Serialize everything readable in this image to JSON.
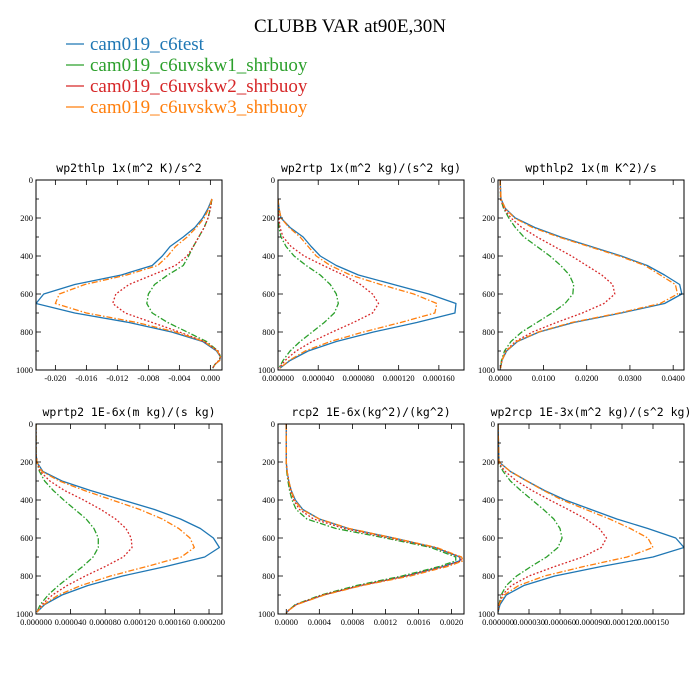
{
  "title": "CLUBB VAR at90E,30N",
  "legend": [
    {
      "name": "cam019_c6test",
      "color": "#1f77b4",
      "dash": "solid"
    },
    {
      "name": "cam019_c6uvskw1_shrbuoy",
      "color": "#2ca02c",
      "dash": "dashdot"
    },
    {
      "name": "cam019_c6uvskw2_shrbuoy",
      "color": "#d62728",
      "dash": "dot"
    },
    {
      "name": "cam019_c6uvskw3_shrbuoy",
      "color": "#ff7f0e",
      "dash": "dashdot"
    }
  ],
  "chart_data": [
    {
      "type": "line",
      "title": "wp2thlp  1x(m^2 K)/s^2",
      "xlim": [
        -0.0225,
        0.0015
      ],
      "ylim": [
        1000,
        0
      ],
      "xtick_labels": [
        "-0.020",
        "-0.016",
        "-0.012",
        "-0.008",
        "-0.004",
        "0.000"
      ],
      "xtick_values": [
        -0.02,
        -0.016,
        -0.012,
        -0.008,
        -0.004,
        0.0
      ],
      "ytick_labels": [
        "0",
        "200",
        "400",
        "600",
        "800",
        "1000"
      ],
      "y": [
        100,
        150,
        200,
        250,
        300,
        350,
        400,
        450,
        500,
        550,
        600,
        650,
        700,
        750,
        800,
        850,
        900,
        930,
        950,
        970,
        990
      ],
      "series": [
        {
          "name": "cam019_c6test",
          "values": [
            0.0002,
            -0.0003,
            -0.001,
            -0.002,
            -0.0035,
            -0.0052,
            -0.0062,
            -0.0075,
            -0.0115,
            -0.0175,
            -0.0215,
            -0.0225,
            -0.0175,
            -0.0105,
            -0.005,
            -0.001,
            0.0008,
            0.0013,
            0.0012,
            0.0006,
            0.0003
          ]
        },
        {
          "name": "cam019_c6uvskw1_shrbuoy",
          "values": [
            0.0002,
            0.0,
            -0.0003,
            -0.0008,
            -0.0015,
            -0.0022,
            -0.0028,
            -0.0035,
            -0.0055,
            -0.0072,
            -0.008,
            -0.0082,
            -0.0075,
            -0.0055,
            -0.003,
            -0.0005,
            0.001,
            0.0013,
            0.0011,
            0.0006,
            0.0003
          ]
        },
        {
          "name": "cam019_c6uvskw2_shrbuoy",
          "values": [
            0.0002,
            0.0,
            -0.0003,
            -0.0008,
            -0.0015,
            -0.0022,
            -0.003,
            -0.0045,
            -0.0075,
            -0.0105,
            -0.0122,
            -0.0126,
            -0.011,
            -0.0075,
            -0.004,
            -0.0008,
            0.001,
            0.0013,
            0.0011,
            0.0006,
            0.0003
          ]
        },
        {
          "name": "cam019_c6uvskw3_shrbuoy",
          "values": [
            0.0002,
            -0.0002,
            -0.0008,
            -0.0018,
            -0.003,
            -0.0045,
            -0.0055,
            -0.0068,
            -0.0108,
            -0.0162,
            -0.0195,
            -0.02,
            -0.016,
            -0.0095,
            -0.0045,
            -0.0008,
            0.0009,
            0.0013,
            0.0012,
            0.0006,
            0.0003
          ]
        }
      ]
    },
    {
      "type": "line",
      "title": "wp2rtp  1x(m^2 kg)/(s^2 kg)",
      "xlim": [
        0,
        0.000185
      ],
      "ylim": [
        1000,
        0
      ],
      "xtick_labels": [
        "0.000000",
        "0.000040",
        "0.000080",
        "0.000120",
        "0.000160"
      ],
      "xtick_values": [
        0,
        4e-05,
        8e-05,
        0.00012,
        0.00016
      ],
      "ytick_labels": [
        "0",
        "200",
        "400",
        "600",
        "800",
        "1000"
      ],
      "y": [
        100,
        150,
        200,
        250,
        300,
        350,
        400,
        450,
        500,
        550,
        600,
        650,
        700,
        750,
        800,
        850,
        900,
        950,
        990
      ],
      "series": [
        {
          "name": "cam019_c6test",
          "values": [
            0,
            1e-06,
            3e-06,
            1.2e-05,
            2.5e-05,
            3.3e-05,
            4.2e-05,
            5.8e-05,
            8e-05,
            0.000115,
            0.00015,
            0.000177,
            0.000176,
            0.000138,
            9.5e-05,
            5.8e-05,
            3e-05,
            1.2e-05,
            2e-06
          ]
        },
        {
          "name": "cam019_c6uvskw1_shrbuoy",
          "values": [
            0,
            0,
            5e-07,
            1e-06,
            3e-06,
            8e-06,
            1.6e-05,
            2.8e-05,
            4.2e-05,
            5.2e-05,
            5.8e-05,
            6e-05,
            5.6e-05,
            4.6e-05,
            3.4e-05,
            2.2e-05,
            1.2e-05,
            5e-06,
            1e-06
          ]
        },
        {
          "name": "cam019_c6uvskw2_shrbuoy",
          "values": [
            0,
            0,
            1e-06,
            2e-06,
            5e-06,
            1.3e-05,
            2.6e-05,
            4.5e-05,
            6.5e-05,
            8.2e-05,
            9.4e-05,
            0.0001,
            9.4e-05,
            7.5e-05,
            5.4e-05,
            3.4e-05,
            1.8e-05,
            7e-06,
            1e-06
          ]
        },
        {
          "name": "cam019_c6uvskw3_shrbuoy",
          "values": [
            0,
            1e-06,
            3e-06,
            1.1e-05,
            2.2e-05,
            3e-05,
            3.8e-05,
            5.2e-05,
            7.2e-05,
            0.000102,
            0.000135,
            0.000158,
            0.000156,
            0.000122,
            8.5e-05,
            5.2e-05,
            2.7e-05,
            1.1e-05,
            2e-06
          ]
        }
      ]
    },
    {
      "type": "line",
      "title": "wpthlp2  1x(m K^2)/s",
      "xlim": [
        -0.0005,
        0.0425
      ],
      "ylim": [
        1000,
        0
      ],
      "xtick_labels": [
        "0.0000",
        "0.0100",
        "0.0200",
        "0.0300",
        "0.0400"
      ],
      "xtick_values": [
        0,
        0.01,
        0.02,
        0.03,
        0.04
      ],
      "ytick_labels": [
        "0",
        "200",
        "400",
        "600",
        "800",
        "1000"
      ],
      "y": [
        0,
        100,
        150,
        200,
        250,
        300,
        350,
        400,
        450,
        500,
        550,
        600,
        650,
        700,
        750,
        800,
        850,
        900,
        950,
        990
      ],
      "series": [
        {
          "name": "cam019_c6test",
          "values": [
            0,
            0.0002,
            0.0012,
            0.0035,
            0.008,
            0.014,
            0.021,
            0.028,
            0.034,
            0.038,
            0.0415,
            0.042,
            0.038,
            0.028,
            0.017,
            0.009,
            0.004,
            0.0015,
            0.0004,
            0.0001
          ]
        },
        {
          "name": "cam019_c6uvskw1_shrbuoy",
          "values": [
            0,
            0.0001,
            0.0008,
            0.002,
            0.0035,
            0.0055,
            0.0085,
            0.0115,
            0.014,
            0.016,
            0.017,
            0.0168,
            0.015,
            0.012,
            0.0085,
            0.005,
            0.0025,
            0.001,
            0.0003,
            0.0001
          ]
        },
        {
          "name": "cam019_c6uvskw2_shrbuoy",
          "values": [
            0,
            0.0001,
            0.0009,
            0.0025,
            0.005,
            0.0085,
            0.0125,
            0.0165,
            0.02,
            0.0235,
            0.026,
            0.0265,
            0.024,
            0.019,
            0.013,
            0.0075,
            0.0035,
            0.0013,
            0.0004,
            0.0001
          ]
        },
        {
          "name": "cam019_c6uvskw3_shrbuoy",
          "values": [
            0,
            0.0002,
            0.0012,
            0.0033,
            0.0075,
            0.0135,
            0.0205,
            0.0275,
            0.0335,
            0.037,
            0.0405,
            0.041,
            0.037,
            0.0275,
            0.0165,
            0.0088,
            0.0038,
            0.0014,
            0.0004,
            0.0001
          ]
        }
      ]
    },
    {
      "type": "line",
      "title": "wprtp2  1E-6x(m kg)/(s kg)",
      "xlim": [
        0,
        0.000215
      ],
      "ylim": [
        1000,
        0
      ],
      "xtick_labels": [
        "0.000000",
        "0.000040",
        "0.000080",
        "0.000120",
        "0.000160",
        "0.000200"
      ],
      "xtick_values": [
        0,
        4e-05,
        8e-05,
        0.00012,
        0.00016,
        0.0002
      ],
      "ytick_labels": [
        "0",
        "200",
        "400",
        "600",
        "800",
        "1000"
      ],
      "y": [
        0,
        150,
        200,
        250,
        300,
        350,
        400,
        450,
        500,
        550,
        600,
        650,
        700,
        750,
        800,
        850,
        900,
        950,
        990
      ],
      "series": [
        {
          "name": "cam019_c6test",
          "values": [
            0,
            0,
            1e-06,
            8e-06,
            3e-05,
            6.3e-05,
            0.0001,
            0.000137,
            0.000167,
            0.00019,
            0.000205,
            0.000212,
            0.000195,
            0.00015,
            0.0001,
            6e-05,
            3e-05,
            1e-05,
            1e-06
          ]
        },
        {
          "name": "cam019_c6uvskw1_shrbuoy",
          "values": [
            0,
            0,
            1e-06,
            4e-06,
            1e-05,
            2e-05,
            3.2e-05,
            4.5e-05,
            5.8e-05,
            6.7e-05,
            7.2e-05,
            7.2e-05,
            6.6e-05,
            5.4e-05,
            4e-05,
            2.6e-05,
            1.4e-05,
            5e-06,
            1e-06
          ]
        },
        {
          "name": "cam019_c6uvskw2_shrbuoy",
          "values": [
            0,
            0,
            1e-06,
            5e-06,
            1.6e-05,
            3.3e-05,
            5.5e-05,
            7.5e-05,
            9.2e-05,
            0.000104,
            0.00011,
            0.000111,
            0.000101,
            8e-05,
            5.7e-05,
            3.6e-05,
            1.9e-05,
            7e-06,
            1e-06
          ]
        },
        {
          "name": "cam019_c6uvskw3_shrbuoy",
          "values": [
            0,
            0,
            1e-06,
            7e-06,
            2.7e-05,
            5.6e-05,
            8.8e-05,
            0.00012,
            0.000146,
            0.000165,
            0.000178,
            0.000183,
            0.000168,
            0.000128,
            8.6e-05,
            5.2e-05,
            2.6e-05,
            9e-06,
            1e-06
          ]
        }
      ]
    },
    {
      "type": "line",
      "title": "rcp2  1E-6x(kg^2)/(kg^2)",
      "xlim": [
        -0.0001,
        0.00215
      ],
      "ylim": [
        1000,
        0
      ],
      "xtick_labels": [
        "0.0000",
        "0.0004",
        "0.0008",
        "0.0012",
        "0.0016",
        "0.0020"
      ],
      "xtick_values": [
        0,
        0.0004,
        0.0008,
        0.0012,
        0.0016,
        0.002
      ],
      "ytick_labels": [
        "0",
        "200",
        "400",
        "600",
        "800",
        "1000"
      ],
      "y": [
        0,
        200,
        250,
        300,
        350,
        400,
        450,
        500,
        550,
        600,
        650,
        700,
        720,
        750,
        800,
        850,
        900,
        950,
        980,
        995
      ],
      "series": [
        {
          "name": "cam019_c6test",
          "values": [
            0,
            0,
            1e-05,
            3e-05,
            6e-05,
            0.00011,
            0.0002,
            0.0004,
            0.00075,
            0.0013,
            0.0018,
            0.0021,
            0.0021,
            0.0019,
            0.00145,
            0.0009,
            0.00045,
            0.00012,
            3e-05,
            0
          ]
        },
        {
          "name": "cam019_c6uvskw1_shrbuoy",
          "values": [
            0,
            0,
            5e-06,
            2e-05,
            4e-05,
            7e-05,
            0.00012,
            0.00025,
            0.0006,
            0.0012,
            0.00175,
            0.00205,
            0.00205,
            0.00185,
            0.0014,
            0.00085,
            0.00042,
            0.00011,
            3e-05,
            0
          ]
        },
        {
          "name": "cam019_c6uvskw2_shrbuoy",
          "values": [
            0,
            0,
            1e-05,
            3e-05,
            5e-05,
            9e-05,
            0.00016,
            0.00033,
            0.0007,
            0.00125,
            0.0018,
            0.0021,
            0.00212,
            0.0019,
            0.00145,
            0.0009,
            0.00044,
            0.00012,
            3e-05,
            0
          ]
        },
        {
          "name": "cam019_c6uvskw3_shrbuoy",
          "values": [
            0,
            0,
            1e-05,
            3e-05,
            6e-05,
            0.0001,
            0.00019,
            0.0004,
            0.00076,
            0.0013,
            0.00182,
            0.00212,
            0.00214,
            0.00195,
            0.0015,
            0.00092,
            0.00046,
            0.00013,
            3e-05,
            0
          ]
        }
      ]
    },
    {
      "type": "line",
      "title": "wp2rcp  1E-3x(m^2 kg)/(s^2 kg)",
      "xlim": [
        0,
        0.00018
      ],
      "ylim": [
        1000,
        0
      ],
      "xtick_labels": [
        "0.000000",
        "0.000030",
        "0.000060",
        "0.000090",
        "0.000120",
        "0.000150"
      ],
      "xtick_values": [
        0,
        3e-05,
        6e-05,
        9e-05,
        0.00012,
        0.00015
      ],
      "ytick_labels": [
        "0",
        "200",
        "400",
        "600",
        "800",
        "1000"
      ],
      "y": [
        0,
        200,
        250,
        300,
        350,
        400,
        450,
        500,
        550,
        600,
        650,
        700,
        750,
        800,
        850,
        900,
        950,
        990
      ],
      "series": [
        {
          "name": "cam019_c6test",
          "values": [
            0,
            1e-06,
            1.2e-05,
            2.8e-05,
            4.5e-05,
            6.5e-05,
            9e-05,
            0.000115,
            0.000145,
            0.000172,
            0.00018,
            0.00015,
            0.0001,
            5.5e-05,
            2.5e-05,
            8e-06,
            2e-06,
            0
          ]
        },
        {
          "name": "cam019_c6uvskw1_shrbuoy",
          "values": [
            0,
            0,
            5e-06,
            1.2e-05,
            2.2e-05,
            3.3e-05,
            4.4e-05,
            5.4e-05,
            6e-05,
            6.2e-05,
            5.8e-05,
            4.7e-05,
            3.2e-05,
            1.8e-05,
            8e-06,
            3e-06,
            1e-06,
            0
          ]
        },
        {
          "name": "cam019_c6uvskw2_shrbuoy",
          "values": [
            0,
            0,
            7e-06,
            1.8e-05,
            3.3e-05,
            5e-05,
            6.8e-05,
            8.5e-05,
            9.8e-05,
            0.000105,
            0.0001,
            8.2e-05,
            5.5e-05,
            3e-05,
            1.3e-05,
            4e-06,
            1e-06,
            0
          ]
        },
        {
          "name": "cam019_c6uvskw3_shrbuoy",
          "values": [
            0,
            1e-06,
            1.2e-05,
            2.8e-05,
            4.4e-05,
            6.2e-05,
            8.5e-05,
            0.000108,
            0.000128,
            0.000145,
            0.00015,
            0.000125,
            8.3e-05,
            4.5e-05,
            2e-05,
            6e-06,
            1e-06,
            0
          ]
        }
      ]
    }
  ]
}
